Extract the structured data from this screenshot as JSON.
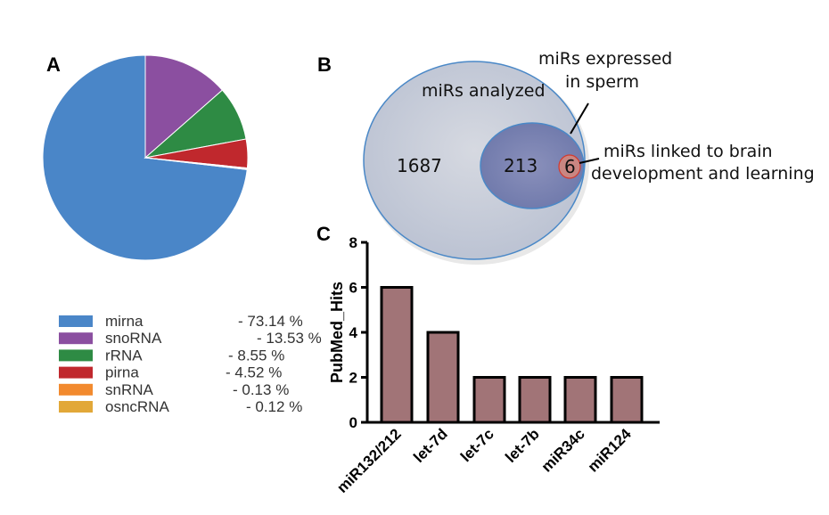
{
  "panels": {
    "a": "A",
    "b": "B",
    "c": "C"
  },
  "chart_data": [
    {
      "type": "pie",
      "panel": "A",
      "slices": [
        {
          "name": "mirna",
          "value": 73.14,
          "label": "- 73.14 %",
          "color": "#4a86c8"
        },
        {
          "name": "snoRNA",
          "value": 13.53,
          "label": "- 13.53 %",
          "color": "#8b4fa0"
        },
        {
          "name": "rRNA",
          "value": 8.55,
          "label": "- 8.55 %",
          "color": "#2e8b44"
        },
        {
          "name": "pirna",
          "value": 4.52,
          "label": "- 4.52 %",
          "color": "#c0282d"
        },
        {
          "name": "snRNA",
          "value": 0.13,
          "label": "- 0.13 %",
          "color": "#f28a2e"
        },
        {
          "name": "osncRNA",
          "value": 0.12,
          "label": "- 0.12 %",
          "color": "#e2a838"
        }
      ],
      "legend_position": "bottom"
    },
    {
      "type": "venn",
      "panel": "B",
      "sets": [
        {
          "label": "miRs analyzed",
          "count": "1687",
          "color": "#c6cbd8"
        },
        {
          "label_lines": [
            "miRs expressed",
            "in sperm"
          ],
          "count": "213",
          "color": "#7f86b4"
        },
        {
          "label_lines": [
            "miRs linked to brain",
            "development and learning"
          ],
          "count": "6",
          "color": "#d07a78"
        }
      ]
    },
    {
      "type": "bar",
      "panel": "C",
      "categories": [
        "miR132/212",
        "let-7d",
        "let-7c",
        "let-7b",
        "miR34c",
        "miR124"
      ],
      "values": [
        6,
        4,
        2,
        2,
        2,
        2
      ],
      "ylabel": "PubMed_Hits",
      "ylim": [
        0,
        8
      ],
      "yticks": [
        "0",
        "2",
        "4",
        "6",
        "8"
      ],
      "bar_color": "#a17477"
    }
  ]
}
